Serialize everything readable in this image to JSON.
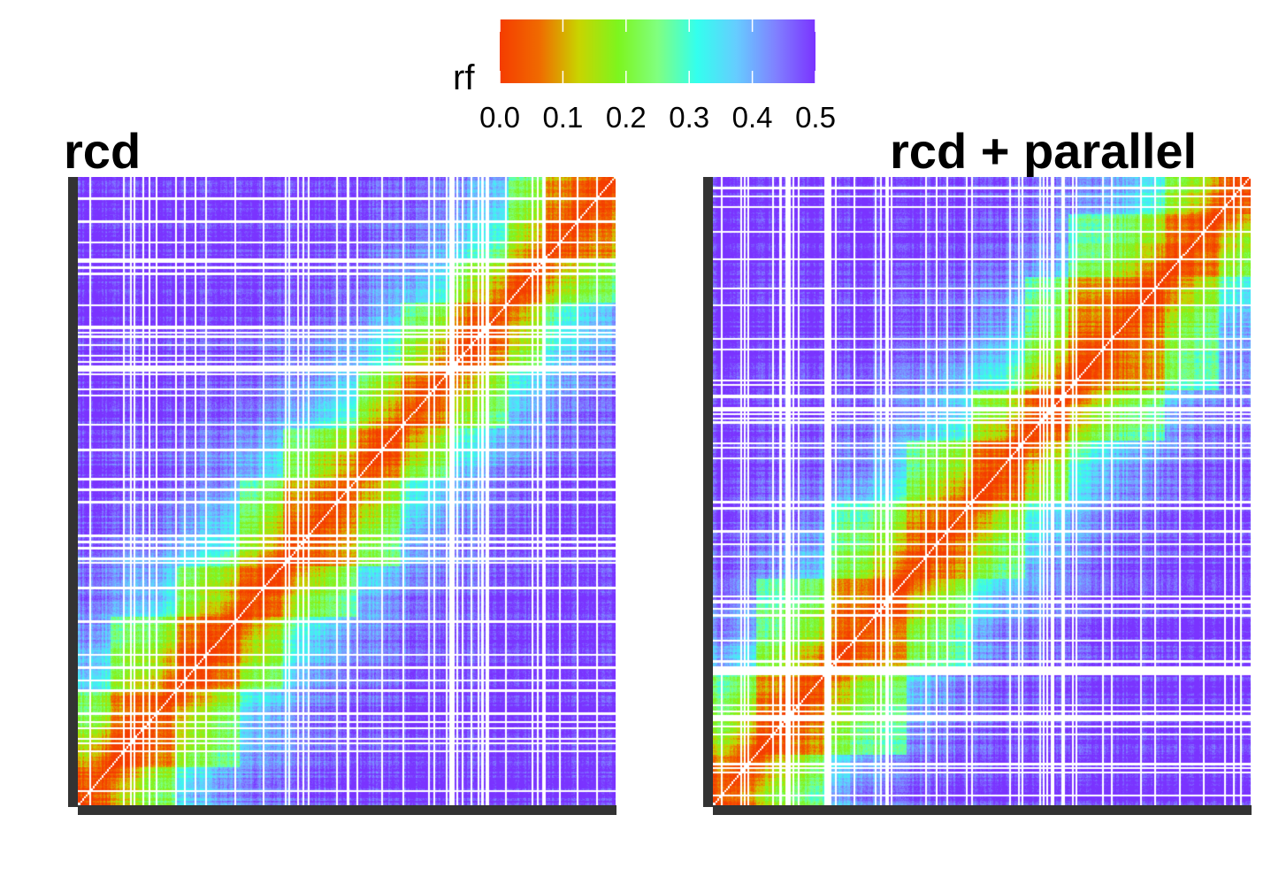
{
  "legend": {
    "title": "rf",
    "ticks": [
      "0.0",
      "0.1",
      "0.2",
      "0.3",
      "0.4",
      "0.5"
    ],
    "range": [
      0.0,
      0.5
    ],
    "palette": [
      "#f53c00",
      "#f06a00",
      "#c9d400",
      "#7df51e",
      "#80ff80",
      "#33ffee",
      "#66ccff",
      "#8080ff",
      "#7a33ff"
    ]
  },
  "chart_data": [
    {
      "type": "heatmap",
      "title": "rcd",
      "xlabel": "",
      "ylabel": "",
      "value_range": [
        0.0,
        0.5
      ],
      "colorbar": "rf",
      "description_of_values": "recombination fraction matrix; low values (red) clustered along diagonal blocks, high values (blue/violet) far from diagonal, white = missing",
      "blocks": [
        [
          0.0,
          0.06
        ],
        [
          0.06,
          0.18
        ],
        [
          0.18,
          0.3
        ],
        [
          0.3,
          0.38
        ],
        [
          0.38,
          0.52
        ],
        [
          0.52,
          0.6
        ],
        [
          0.6,
          0.7
        ],
        [
          0.7,
          0.8
        ],
        [
          0.8,
          0.87
        ],
        [
          0.87,
          1.0
        ]
      ]
    },
    {
      "type": "heatmap",
      "title": "rcd + parallel",
      "xlabel": "",
      "ylabel": "",
      "value_range": [
        0.0,
        0.5
      ],
      "colorbar": "rf",
      "description_of_values": "recombination fraction matrix ordered with parallel method; red blocks along diagonal, blue/violet off-diagonal, white = missing",
      "blocks": [
        [
          0.0,
          0.08
        ],
        [
          0.08,
          0.22
        ],
        [
          0.22,
          0.36
        ],
        [
          0.36,
          0.48
        ],
        [
          0.48,
          0.58
        ],
        [
          0.58,
          0.66
        ],
        [
          0.66,
          0.84
        ],
        [
          0.84,
          0.94
        ],
        [
          0.94,
          1.0
        ]
      ]
    }
  ]
}
